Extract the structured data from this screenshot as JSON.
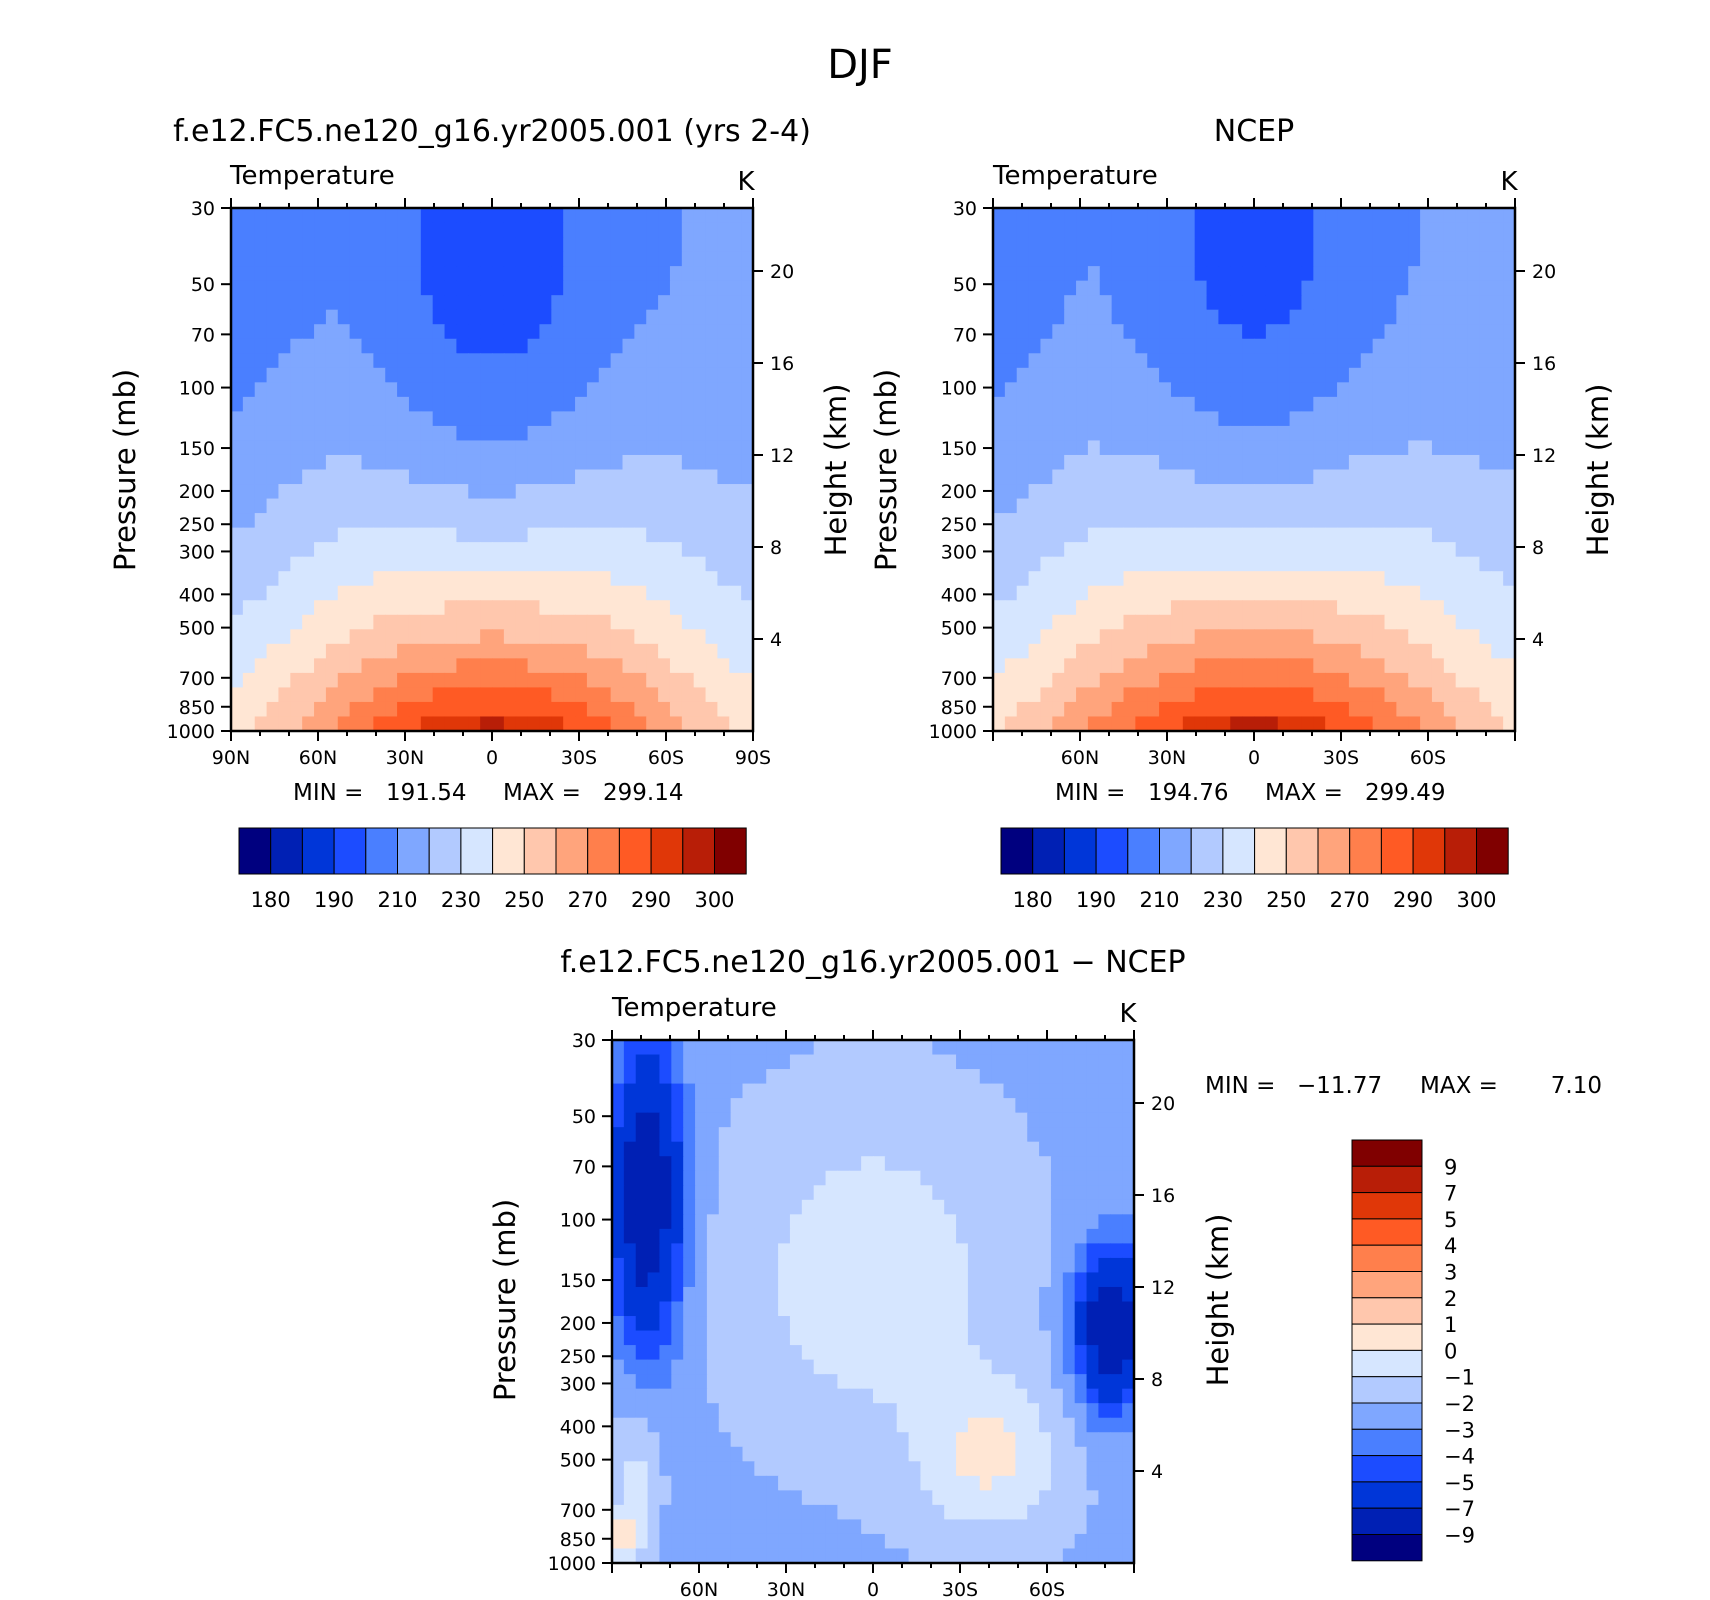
{
  "figure": {
    "title": "DJF"
  },
  "chart_data": [
    {
      "type": "heatmap",
      "panel": "model",
      "title": "f.e12.FC5.ne120_g16.yr2005.001 (yrs 2-4)",
      "variable": "Temperature",
      "units": "K",
      "ylabel": "Pressure (mb)",
      "y2label": "Height (km)",
      "x_tick_labels": [
        "90N",
        "60N",
        "30N",
        "0",
        "30S",
        "60S",
        "90S"
      ],
      "x_tick_values": [
        90,
        60,
        30,
        0,
        -30,
        -60,
        -90
      ],
      "xlim": [
        90,
        -90
      ],
      "y_tick_labels": [
        "30",
        "50",
        "70",
        "100",
        "150",
        "200",
        "250",
        "300",
        "400",
        "500",
        "700",
        "850",
        "1000"
      ],
      "y_tick_values": [
        30,
        50,
        70,
        100,
        150,
        200,
        250,
        300,
        400,
        500,
        700,
        850,
        1000
      ],
      "ylim": [
        1000,
        30
      ],
      "y_scale": "log",
      "y2_tick_labels": [
        "20",
        "16",
        "12",
        "8",
        "4"
      ],
      "y2_tick_values": [
        20,
        16,
        12,
        8,
        4
      ],
      "stats": {
        "min_label": "MIN =",
        "min": "191.54",
        "max_label": "MAX =",
        "max": "299.14"
      },
      "colorbar": {
        "orientation": "horizontal",
        "labels": [
          "180",
          "190",
          "210",
          "230",
          "250",
          "270",
          "290",
          "300"
        ],
        "colors": [
          "#00007f",
          "#0020b4",
          "#0036d8",
          "#1c4cff",
          "#4a7fff",
          "#7fa7ff",
          "#b2caff",
          "#d6e6ff",
          "#ffe6d4",
          "#ffc7ad",
          "#ffa47c",
          "#ff7f4c",
          "#ff5a24",
          "#e03708",
          "#b81e07",
          "#800000"
        ],
        "levels": [
          175,
          180,
          185,
          190,
          200,
          210,
          220,
          230,
          240,
          250,
          260,
          270,
          280,
          290,
          295,
          300,
          305
        ]
      },
      "field_model": {
        "strat_pole": 211,
        "strat_equator": 194,
        "surface_equator": 298.5,
        "surface_pole": 248
      }
    },
    {
      "type": "heatmap",
      "panel": "obs",
      "title": "NCEP",
      "variable": "Temperature",
      "units": "K",
      "ylabel": "Pressure (mb)",
      "y2label": "Height (km)",
      "x_tick_labels": [
        "60N",
        "30N",
        "0",
        "30S",
        "60S"
      ],
      "x_tick_values": [
        60,
        30,
        0,
        -30,
        -60
      ],
      "xlim": [
        90,
        -90
      ],
      "y_tick_labels": [
        "30",
        "50",
        "70",
        "100",
        "150",
        "200",
        "250",
        "300",
        "400",
        "500",
        "700",
        "850",
        "1000"
      ],
      "y_tick_values": [
        30,
        50,
        70,
        100,
        150,
        200,
        250,
        300,
        400,
        500,
        700,
        850,
        1000
      ],
      "ylim": [
        1000,
        30
      ],
      "y_scale": "log",
      "y2_tick_labels": [
        "20",
        "16",
        "12",
        "8",
        "4"
      ],
      "y2_tick_values": [
        20,
        16,
        12,
        8,
        4
      ],
      "stats": {
        "min_label": "MIN =",
        "min": "194.76",
        "max_label": "MAX =",
        "max": "299.49"
      },
      "colorbar": {
        "orientation": "horizontal",
        "labels": [
          "180",
          "190",
          "210",
          "230",
          "250",
          "270",
          "290",
          "300"
        ],
        "colors": [
          "#00007f",
          "#0020b4",
          "#0036d8",
          "#1c4cff",
          "#4a7fff",
          "#7fa7ff",
          "#b2caff",
          "#d6e6ff",
          "#ffe6d4",
          "#ffc7ad",
          "#ffa47c",
          "#ff7f4c",
          "#ff5a24",
          "#e03708",
          "#b81e07",
          "#800000"
        ],
        "levels": [
          175,
          180,
          185,
          190,
          200,
          210,
          220,
          230,
          240,
          250,
          260,
          270,
          280,
          290,
          295,
          300,
          305
        ]
      },
      "field_model": {
        "strat_pole": 212,
        "strat_equator": 196,
        "surface_equator": 299,
        "surface_pole": 250
      }
    },
    {
      "type": "heatmap",
      "panel": "difference",
      "title": "f.e12.FC5.ne120_g16.yr2005.001 − NCEP",
      "variable": "Temperature",
      "units": "K",
      "ylabel": "Pressure (mb)",
      "y2label": "Height (km)",
      "x_tick_labels": [
        "60N",
        "30N",
        "0",
        "30S",
        "60S"
      ],
      "x_tick_values": [
        60,
        30,
        0,
        -30,
        -60
      ],
      "xlim": [
        90,
        -90
      ],
      "y_tick_labels": [
        "30",
        "50",
        "70",
        "100",
        "150",
        "200",
        "250",
        "300",
        "400",
        "500",
        "700",
        "850",
        "1000"
      ],
      "y_tick_values": [
        30,
        50,
        70,
        100,
        150,
        200,
        250,
        300,
        400,
        500,
        700,
        850,
        1000
      ],
      "ylim": [
        1000,
        30
      ],
      "y_scale": "log",
      "y2_tick_labels": [
        "20",
        "16",
        "12",
        "8",
        "4"
      ],
      "y2_tick_values": [
        20,
        16,
        12,
        8,
        4
      ],
      "stats": {
        "min_label": "MIN =",
        "min": "−11.77",
        "max_label": "MAX =",
        "max": "7.10"
      },
      "colorbar": {
        "orientation": "vertical",
        "labels": [
          "9",
          "7",
          "5",
          "4",
          "3",
          "2",
          "1",
          "0",
          "−1",
          "−2",
          "−3",
          "−4",
          "−5",
          "−7",
          "−9"
        ],
        "colors_top_to_bottom": [
          "#800000",
          "#b81e07",
          "#e03708",
          "#ff5a24",
          "#ff7f4c",
          "#ffa47c",
          "#ffc7ad",
          "#ffe6d4",
          "#d6e6ff",
          "#b2caff",
          "#7fa7ff",
          "#4a7fff",
          "#1c4cff",
          "#0036d8",
          "#0020b4",
          "#00007f"
        ],
        "levels": [
          -11,
          -9,
          -7,
          -5,
          -4,
          -3,
          -2,
          -1,
          0,
          1,
          2,
          3,
          4,
          5,
          7,
          9,
          11
        ]
      }
    }
  ]
}
